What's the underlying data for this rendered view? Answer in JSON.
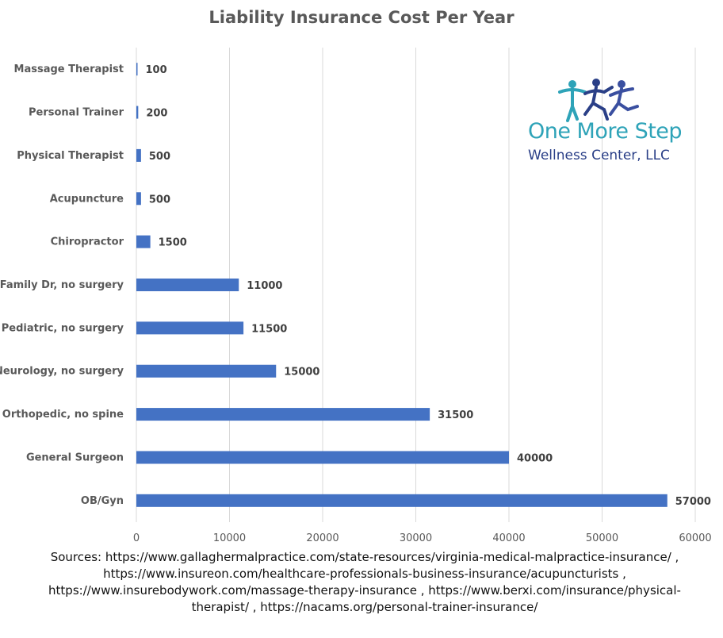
{
  "chart_data": {
    "type": "bar",
    "orientation": "horizontal",
    "title": "Liability Insurance Cost Per Year",
    "categories": [
      "Massage Therapist",
      "Personal Trainer",
      "Physical Therapist",
      "Acupuncture",
      "Chiropractor",
      "Family Dr, no surgery",
      "Pediatric, no surgery",
      "Neurology, no surgery",
      "Orthopedic, no spine",
      "General Surgeon",
      "OB/Gyn"
    ],
    "values": [
      100,
      200,
      500,
      500,
      1500,
      11000,
      11500,
      15000,
      31500,
      40000,
      57000
    ],
    "xlim": [
      0,
      60000
    ],
    "xticks": [
      0,
      10000,
      20000,
      30000,
      40000,
      50000,
      60000
    ],
    "xlabel": "",
    "ylabel": "",
    "grid": "vertical",
    "bar_color": "#4472c4",
    "data_labels": true
  },
  "logo": {
    "line1": "One More Step",
    "line2": "Wellness Center, LLC",
    "accent_color": "#2ea3b8",
    "brand_color": "#2a3f87"
  },
  "sources": "Sources: https://www.gallaghermalpractice.com/state-resources/virginia-medical-malpractice-insurance/ , https://www.insureon.com/healthcare-professionals-business-insurance/acupuncturists , https://www.insurebodywork.com/massage-therapy-insurance , https://www.berxi.com/insurance/physical-therapist/ , https://nacams.org/personal-trainer-insurance/"
}
